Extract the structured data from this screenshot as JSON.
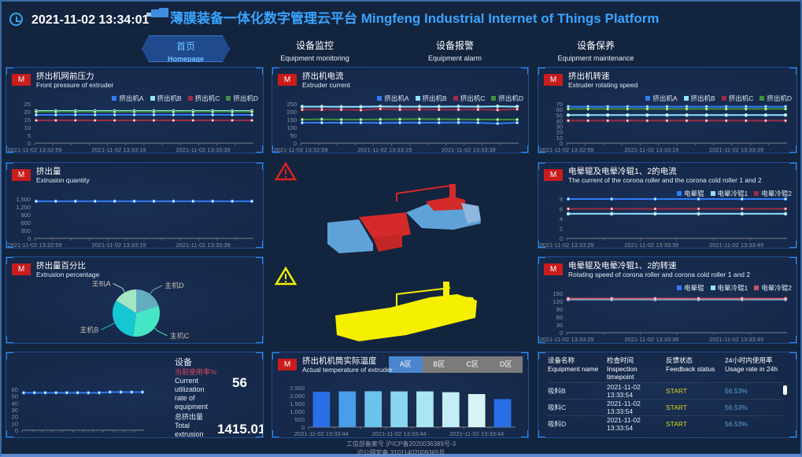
{
  "header": {
    "datetime": "2021-11-02 13:34:01",
    "title": "薄膜装备一体化数字管理云平台 Mingfeng Industrial Internet of Things Platform",
    "clock_icon": "clock-icon",
    "logo_icon": "cloud-logo-icon"
  },
  "nav": [
    {
      "cn": "首页",
      "en": "Homepage",
      "active": true
    },
    {
      "cn": "设备监控",
      "en": "Equipment monitoring"
    },
    {
      "cn": "设备报警",
      "en": "Equipment alarm"
    },
    {
      "cn": "设备保养",
      "en": "Equipment maintenance"
    }
  ],
  "badge": "M",
  "colors": {
    "accent": "#3aa4ff",
    "badge": "#c91d1d",
    "alarm_red": "#e02020",
    "alarm_yellow": "#f5f000",
    "status_start": "#d8d41a",
    "rate": "#59a6d3"
  },
  "chart_data": [
    {
      "id": "pressure",
      "type": "line",
      "title": "挤出机网前压力",
      "subtitle": "Front pressure of extruder",
      "ylim": [
        0,
        25
      ],
      "yticks": [
        "0",
        "5",
        "10",
        "15",
        "20",
        "25"
      ],
      "xlabels": [
        "2021-11-02 13:32:59",
        "2021-11-02 13:33:19",
        "2021-11-02 13:33:39"
      ],
      "series": [
        {
          "name": "挤出机A",
          "color": "#2f7cf6",
          "values": [
            18,
            18,
            18,
            18,
            18,
            18,
            18,
            18,
            18,
            18,
            18,
            18
          ]
        },
        {
          "name": "挤出机B",
          "color": "#8fe3ff",
          "values": [
            20.5,
            20.5,
            20.5,
            20.5,
            20.5,
            20.5,
            20.5,
            20.5,
            20.5,
            20.5,
            20.5,
            20.5
          ]
        },
        {
          "name": "挤出机C",
          "color": "#9a2c45",
          "values": [
            14.5,
            14.5,
            14.5,
            14.5,
            14.5,
            14.5,
            14.5,
            14.5,
            14.5,
            14.5,
            14.5,
            14.5
          ]
        },
        {
          "name": "挤出机D",
          "color": "#3f8f3f",
          "values": [
            20,
            20,
            20,
            20,
            20,
            20,
            20,
            20,
            20,
            20,
            20,
            20
          ]
        }
      ]
    },
    {
      "id": "current",
      "type": "line",
      "title": "挤出机电流",
      "subtitle": "Extruder current",
      "ylim": [
        0,
        250
      ],
      "yticks": [
        "0",
        "50",
        "100",
        "150",
        "200",
        "250"
      ],
      "xlabels": [
        "2021-11-02 13:32:59",
        "2021-11-02 13:33:19",
        "2021-11-02 13:33:39"
      ],
      "series": [
        {
          "name": "挤出机A",
          "color": "#2f7cf6",
          "values": [
            130,
            130,
            130,
            130,
            129,
            130,
            130,
            130,
            131,
            130,
            125,
            130
          ]
        },
        {
          "name": "挤出机B",
          "color": "#8fe3ff",
          "values": [
            232,
            232,
            231,
            231,
            233,
            232,
            232,
            232,
            233,
            232,
            234,
            232
          ]
        },
        {
          "name": "挤出机C",
          "color": "#9a2c45",
          "values": [
            213,
            213,
            213,
            210,
            218,
            213,
            214,
            213,
            213,
            214,
            211,
            216
          ]
        },
        {
          "name": "挤出机D",
          "color": "#3f8f3f",
          "values": [
            150,
            152,
            150,
            150,
            151,
            152,
            153,
            152,
            151,
            150,
            150,
            150
          ]
        }
      ]
    },
    {
      "id": "speed",
      "type": "line",
      "title": "挤出机转速",
      "subtitle": "Extruder rotating speed",
      "ylim": [
        0,
        70
      ],
      "yticks": [
        "0",
        "10",
        "20",
        "30",
        "40",
        "50",
        "60",
        "70"
      ],
      "xlabels": [
        "2021-11-02 13:32:59",
        "2021-11-02 13:33:19",
        "2021-11-02 13:33:39"
      ],
      "series": [
        {
          "name": "挤出机A",
          "color": "#2f7cf6",
          "values": [
            65,
            65,
            65,
            65,
            65,
            65,
            65,
            65,
            65,
            65,
            65,
            65
          ]
        },
        {
          "name": "挤出机B",
          "color": "#8fe3ff",
          "values": [
            50,
            50,
            50,
            50,
            50,
            50,
            50,
            50,
            50,
            50,
            50,
            50
          ]
        },
        {
          "name": "挤出机C",
          "color": "#9a2c45",
          "values": [
            40,
            40,
            40,
            40,
            40,
            40,
            40,
            40,
            40,
            40,
            40,
            40
          ]
        },
        {
          "name": "挤出机D",
          "color": "#3f8f3f",
          "values": [
            61,
            61,
            61,
            61,
            61,
            61,
            61,
            61,
            61,
            61,
            61,
            61
          ]
        }
      ]
    },
    {
      "id": "extrusion",
      "type": "line",
      "title": "挤出量",
      "subtitle": "Extrusion quantity",
      "ylim": [
        0,
        1500
      ],
      "yticks": [
        "0",
        "300",
        "600",
        "900",
        "1,200",
        "1,500"
      ],
      "xlabels": [
        "2021-11-02 13:32:59",
        "2021-11-02 13:33:19",
        "2021-11-02 13:33:39"
      ],
      "series": [
        {
          "color": "#2f7cf6",
          "values": [
            1415,
            1415,
            1415,
            1415,
            1415,
            1415,
            1415,
            1415,
            1415,
            1415,
            1415,
            1415
          ]
        }
      ]
    },
    {
      "id": "corona_current",
      "type": "line",
      "title": "电晕辊及电晕冷辊1、2的电流",
      "subtitle": "The current of the corona roller and the corona cold roller 1 and 2",
      "ylim": [
        0,
        8
      ],
      "yticks": [
        "0",
        "2",
        "4",
        "6",
        "8"
      ],
      "xlabels": [
        "2021-11-02 13:33:29",
        "2021-11-02 13:33:39",
        "2021-11-02 13:33:49"
      ],
      "series": [
        {
          "name": "电晕辊",
          "color": "#2f7cf6",
          "values": [
            8,
            8,
            8,
            8,
            8,
            8
          ]
        },
        {
          "name": "电晕冷辊1",
          "color": "#8fe3ff",
          "values": [
            5,
            5,
            5,
            5,
            5,
            5
          ]
        },
        {
          "name": "电晕冷辊2",
          "color": "#9a2c45",
          "values": [
            6,
            6,
            6,
            6,
            6,
            6
          ]
        }
      ]
    },
    {
      "id": "corona_speed",
      "type": "line",
      "title": "电晕辊及电晕冷辊1、2的转速",
      "subtitle": "Rotating speed of corona roller and corona cold roller 1 and 2",
      "ylim": [
        0,
        150
      ],
      "yticks": [
        "0",
        "30",
        "60",
        "90",
        "120",
        "150"
      ],
      "xlabels": [
        "2021-11-02 13:33:29",
        "2021-11-02 13:33:39",
        "2021-11-02 13:33:49"
      ],
      "series": [
        {
          "name": "电晕辊",
          "color": "#2f7cf6",
          "values": [
            128,
            128,
            128,
            128,
            128,
            128
          ]
        },
        {
          "name": "电晕冷辊1",
          "color": "#8fe3ff",
          "values": [
            127,
            127,
            127,
            127,
            127,
            127
          ]
        },
        {
          "name": "电晕冷辊2",
          "color": "#c9566e",
          "values": [
            130,
            130,
            130,
            130,
            130,
            130
          ]
        }
      ]
    },
    {
      "id": "percentage",
      "type": "pie",
      "title": "挤出量百分比",
      "subtitle": "Extrusion percentage",
      "slices": [
        {
          "name": "主机D",
          "value": 20,
          "color": "#63adc0"
        },
        {
          "name": "主机C",
          "value": 32,
          "color": "#45e6c6"
        },
        {
          "name": "主机B",
          "value": 32,
          "color": "#17c7d4"
        },
        {
          "name": "主机A",
          "value": 16,
          "color": "#a4e6c1"
        }
      ]
    },
    {
      "id": "utilization",
      "type": "line",
      "ylim": [
        0,
        60
      ],
      "yticks": [
        "0",
        "10",
        "20",
        "30",
        "40",
        "50",
        "60"
      ],
      "xlabels": [],
      "series": [
        {
          "color": "#2f7cf6",
          "values": [
            55,
            55,
            55,
            55,
            55,
            55,
            55,
            55,
            56,
            56,
            56,
            56
          ]
        }
      ]
    },
    {
      "id": "temperature",
      "type": "bar",
      "title": "挤出机机筒实际温度",
      "subtitle": "Actual temperature of extruder",
      "ylim": [
        0,
        2500
      ],
      "yticks": [
        "0",
        "500",
        "1,000",
        "1,500",
        "2,000",
        "2,500"
      ],
      "xlabels": [
        "2021-11-02 13:33:44",
        "2021-11-02 13:33:44",
        "2021-11-02 13:33:44"
      ],
      "values": [
        2250,
        2270,
        2280,
        2270,
        2270,
        2220,
        2100,
        1780
      ],
      "colors": [
        "#2a6fe8",
        "#4a9de8",
        "#6cc3ee",
        "#8ad6f0",
        "#a8e6f3",
        "#c3eef5",
        "#d6f4f6",
        "#2a6fe8"
      ]
    }
  ],
  "temperature_tabs": [
    "A区",
    "B区",
    "C区",
    "D区"
  ],
  "utilization": {
    "title": "设备",
    "rate_label_cn": "当前使用率%",
    "rate_label_en": "Current utilization rate of equipment",
    "rate_value": "56",
    "total_label_cn": "总挤出量",
    "total_label_en": "Total extrusion kg",
    "total_value": "1415.01"
  },
  "table": {
    "headers": [
      {
        "cn": "设备名称",
        "en": "Equipment name"
      },
      {
        "cn": "检查时间",
        "en": "Inspection timepoint"
      },
      {
        "cn": "反馈状态",
        "en": "Feedback status"
      },
      {
        "cn": "24小时内使用率",
        "en": "Usage rate in 24h"
      }
    ],
    "rows": [
      {
        "name": "吸料B",
        "time": "2021-11-02 13:33:54",
        "status": "START",
        "rate": "56.53%"
      },
      {
        "name": "吸料C",
        "time": "2021-11-02 13:33:54",
        "status": "START",
        "rate": "56.53%"
      },
      {
        "name": "吸料D",
        "time": "2021-11-02 13:33:54",
        "status": "START",
        "rate": "56.53%"
      }
    ]
  },
  "footer": {
    "line1": "工信部备案号 沪ICP备2020036389号-3",
    "line2": "沪公网安备 31011402009365号"
  }
}
